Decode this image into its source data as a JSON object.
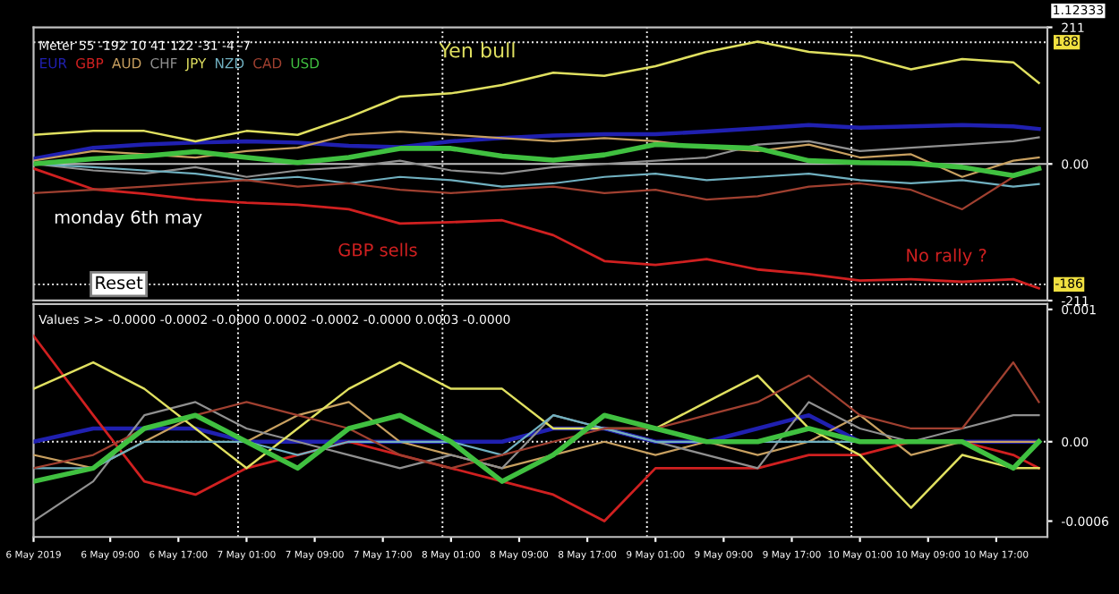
{
  "chart_data": [
    {
      "type": "line",
      "x": [
        "2019-05-06T00:00",
        "2019-05-06T07:00",
        "2019-05-06T13:00",
        "2019-05-06T19:00",
        "2019-05-07T01:00",
        "2019-05-07T07:00",
        "2019-05-07T13:00",
        "2019-05-07T19:00",
        "2019-05-08T01:00",
        "2019-05-08T07:00",
        "2019-05-08T13:00",
        "2019-05-08T19:00",
        "2019-05-09T01:00",
        "2019-05-09T07:00",
        "2019-05-09T13:00",
        "2019-05-09T19:00",
        "2019-05-10T01:00",
        "2019-05-10T07:00",
        "2019-05-10T13:00",
        "2019-05-10T19:00",
        "2019-05-10T22:00"
      ],
      "ylim": [
        -211,
        211
      ],
      "yticks": [
        211,
        {
          "value": 0,
          "label": "0.00"
        },
        -211
      ],
      "xlim": [
        "2019-05-06T00:00",
        "2019-05-10T23:00"
      ],
      "tick_labels": "y",
      "legend": "top left",
      "line_style": "solid",
      "series": [
        {
          "name": "EUR",
          "color": "#2020b0",
          "values": [
            8,
            25,
            30,
            33,
            35,
            33,
            28,
            26,
            35,
            40,
            44,
            46,
            46,
            50,
            55,
            60,
            56,
            58,
            60,
            58,
            54
          ]
        },
        {
          "name": "GBP",
          "color": "#d02020",
          "values": [
            -7,
            -39,
            -46,
            -55,
            -60,
            -63,
            -70,
            -92,
            -90,
            -87,
            -110,
            -150,
            -156,
            -147,
            -163,
            -170,
            -180,
            -178,
            -182,
            -178,
            -192
          ]
        },
        {
          "name": "AUD",
          "color": "#c8a060",
          "values": [
            5,
            20,
            15,
            10,
            20,
            25,
            45,
            50,
            45,
            40,
            35,
            40,
            35,
            25,
            20,
            30,
            10,
            15,
            -20,
            5,
            10
          ]
        },
        {
          "name": "CHF",
          "color": "#909090",
          "values": [
            0,
            -10,
            -15,
            -5,
            -20,
            -10,
            -5,
            5,
            -10,
            -15,
            -5,
            0,
            5,
            10,
            30,
            35,
            20,
            25,
            30,
            35,
            41
          ]
        },
        {
          "name": "JPY",
          "color": "#e0e060",
          "values": [
            45,
            51,
            51,
            35,
            51,
            45,
            72,
            104,
            109,
            122,
            141,
            136,
            151,
            173,
            189,
            173,
            167,
            146,
            162,
            157,
            125
          ]
        },
        {
          "name": "NZD",
          "color": "#70b0c0",
          "values": [
            0,
            -5,
            -10,
            -15,
            -25,
            -20,
            -30,
            -20,
            -25,
            -35,
            -30,
            -20,
            -15,
            -25,
            -20,
            -15,
            -25,
            -30,
            -25,
            -35,
            -31
          ]
        },
        {
          "name": "CAD",
          "color": "#a04030",
          "values": [
            -45,
            -40,
            -35,
            -30,
            -25,
            -35,
            -30,
            -40,
            -45,
            -40,
            -35,
            -45,
            -40,
            -55,
            -50,
            -35,
            -30,
            -40,
            -70,
            -20,
            -4
          ]
        },
        {
          "name": "USD",
          "color": "#40c040",
          "values": [
            0,
            8,
            12,
            19,
            10,
            2,
            10,
            24,
            24,
            12,
            6,
            14,
            30,
            27,
            24,
            5,
            2,
            1,
            -5,
            -18,
            -7
          ]
        }
      ],
      "ref_lines": [
        {
          "axis": "y",
          "value": 0,
          "color": "#c0c0c0",
          "line_style": "solid"
        },
        {
          "axis": "y",
          "value": 188,
          "label": "188",
          "color": "#ffffff",
          "line_style": "dotted"
        },
        {
          "axis": "y",
          "value": -186,
          "label": "-186",
          "color": "#ffffff",
          "line_style": "dotted"
        },
        {
          "axis": "x",
          "value": "2019-05-07T00:00",
          "color": "#ffffff",
          "line_style": "dotted"
        },
        {
          "axis": "x",
          "value": "2019-05-08T00:00",
          "color": "#ffffff",
          "line_style": "dotted"
        },
        {
          "axis": "x",
          "value": "2019-05-09T00:00",
          "color": "#ffffff",
          "line_style": "dotted"
        },
        {
          "axis": "x",
          "value": "2019-05-10T00:00",
          "color": "#ffffff",
          "line_style": "dotted"
        }
      ],
      "annotations": [
        "Meter 55 -192 10 41 122 -31 -4 -7",
        "Yen bull",
        "monday 6th may",
        "GBP sells",
        "No rally ?",
        "Reset",
        "1.12333"
      ]
    },
    {
      "type": "line",
      "x": [
        "2019-05-06T00:00",
        "2019-05-06T07:00",
        "2019-05-06T13:00",
        "2019-05-06T19:00",
        "2019-05-07T01:00",
        "2019-05-07T07:00",
        "2019-05-07T13:00",
        "2019-05-07T19:00",
        "2019-05-08T01:00",
        "2019-05-08T07:00",
        "2019-05-08T13:00",
        "2019-05-08T19:00",
        "2019-05-09T01:00",
        "2019-05-09T07:00",
        "2019-05-09T13:00",
        "2019-05-09T19:00",
        "2019-05-10T01:00",
        "2019-05-10T07:00",
        "2019-05-10T13:00",
        "2019-05-10T19:00",
        "2019-05-10T22:00"
      ],
      "ylim": [
        -0.00072,
        0.00104
      ],
      "yticks": [
        0.001,
        {
          "value": 0,
          "label": "0.00"
        },
        -0.0006
      ],
      "xlim": [
        "2019-05-06T00:00",
        "2019-05-10T23:00"
      ],
      "line_style": "solid",
      "xticks": [
        {
          "value": "2019-05-06T00:00",
          "label": "6 May 2019"
        },
        {
          "value": "2019-05-06T09:00",
          "label": "6 May 09:00"
        },
        {
          "value": "2019-05-06T17:00",
          "label": "6 May 17:00"
        },
        {
          "value": "2019-05-07T01:00",
          "label": "7 May 01:00"
        },
        {
          "value": "2019-05-07T09:00",
          "label": "7 May 09:00"
        },
        {
          "value": "2019-05-07T17:00",
          "label": "7 May 17:00"
        },
        {
          "value": "2019-05-08T01:00",
          "label": "8 May 01:00"
        },
        {
          "value": "2019-05-08T09:00",
          "label": "8 May 09:00"
        },
        {
          "value": "2019-05-08T17:00",
          "label": "8 May 17:00"
        },
        {
          "value": "2019-05-09T01:00",
          "label": "9 May 01:00"
        },
        {
          "value": "2019-05-09T09:00",
          "label": "9 May 09:00"
        },
        {
          "value": "2019-05-09T17:00",
          "label": "9 May 17:00"
        },
        {
          "value": "2019-05-10T01:00",
          "label": "10 May 01:00"
        },
        {
          "value": "2019-05-10T09:00",
          "label": "10 May 09:00"
        },
        {
          "value": "2019-05-10T17:00",
          "label": "10 May 17:00"
        }
      ],
      "series": [
        {
          "color": "#2020b0",
          "values": [
            0,
            0.0001,
            0.0001,
            0.0001,
            0,
            0,
            0,
            0,
            0,
            0,
            0.0001,
            0.0001,
            0,
            0,
            0.0001,
            0.0002,
            0,
            0,
            0,
            0,
            0
          ]
        },
        {
          "color": "#d02020",
          "values": [
            0.0008,
            0.0002,
            -0.0003,
            -0.0004,
            -0.0002,
            -0.0001,
            0,
            -0.0001,
            -0.0002,
            -0.0003,
            -0.0004,
            -0.0006,
            -0.0002,
            -0.0002,
            -0.0002,
            -0.0001,
            -0.0001,
            0,
            0,
            -0.0001,
            -0.0002
          ]
        },
        {
          "color": "#c8a060",
          "values": [
            -0.0001,
            -0.0002,
            0,
            0.0002,
            0,
            0.0002,
            0.0003,
            0,
            -0.0001,
            -0.0002,
            -0.0001,
            0,
            -0.0001,
            0,
            -0.0001,
            0,
            0.0002,
            -0.0001,
            0,
            0,
            0
          ]
        },
        {
          "color": "#909090",
          "values": [
            -0.0006,
            -0.0003,
            0.0002,
            0.0003,
            0.0001,
            0,
            -0.0001,
            -0.0002,
            -0.0001,
            -0.0002,
            0.0002,
            0.0001,
            0,
            -0.0001,
            -0.0002,
            0.0003,
            0.0001,
            0,
            0.0001,
            0.0002,
            0.0002
          ]
        },
        {
          "color": "#e0e060",
          "values": [
            0.0004,
            0.0006,
            0.0004,
            0.0001,
            -0.0002,
            0.0001,
            0.0004,
            0.0006,
            0.0004,
            0.0004,
            0.0001,
            0.0001,
            0.0001,
            0.0003,
            0.0005,
            0.0001,
            -0.0001,
            -0.0005,
            -0.0001,
            -0.0002,
            -0.0002
          ]
        },
        {
          "color": "#70b0c0",
          "values": [
            -0.0002,
            -0.0002,
            0,
            0,
            0,
            -0.0001,
            0,
            0,
            0,
            -0.0001,
            0.0002,
            0.0001,
            0,
            0,
            0,
            0,
            0,
            0,
            0,
            -0.0002,
            0
          ]
        },
        {
          "color": "#a04030",
          "values": [
            -0.0002,
            -0.0001,
            0.0001,
            0.0002,
            0.0003,
            0.0002,
            0.0001,
            -0.0001,
            -0.0002,
            -0.0001,
            0,
            0.0001,
            0.0001,
            0.0002,
            0.0003,
            0.0005,
            0.0002,
            0.0001,
            0.0001,
            0.0006,
            0.0003
          ]
        },
        {
          "color": "#40c040",
          "values": [
            -0.0003,
            -0.0002,
            0.0001,
            0.0002,
            0,
            -0.0002,
            0.0001,
            0.0002,
            0,
            -0.0003,
            -0.0001,
            0.0002,
            0.0001,
            0,
            0,
            0.0001,
            0,
            0,
            0,
            -0.0002,
            0
          ]
        }
      ],
      "ref_lines": [
        {
          "axis": "y",
          "value": 0,
          "color": "#ffffff",
          "line_style": "dotted"
        },
        {
          "axis": "x",
          "value": "2019-05-07T00:00",
          "color": "#ffffff",
          "line_style": "dotted"
        },
        {
          "axis": "x",
          "value": "2019-05-08T00:00",
          "color": "#ffffff",
          "line_style": "dotted"
        },
        {
          "axis": "x",
          "value": "2019-05-09T00:00",
          "color": "#ffffff",
          "line_style": "dotted"
        },
        {
          "axis": "x",
          "value": "2019-05-10T00:00",
          "color": "#ffffff",
          "line_style": "dotted"
        }
      ],
      "annotations": [
        "Values >> -0.0000 -0.0002 -0.0000 0.0002 -0.0002 -0.0000 0.0003 -0.0000"
      ]
    }
  ]
}
